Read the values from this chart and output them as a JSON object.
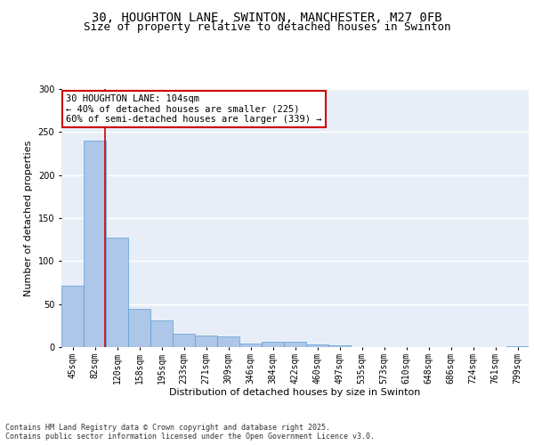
{
  "title_line1": "30, HOUGHTON LANE, SWINTON, MANCHESTER, M27 0FB",
  "title_line2": "Size of property relative to detached houses in Swinton",
  "xlabel": "Distribution of detached houses by size in Swinton",
  "ylabel": "Number of detached properties",
  "categories": [
    "45sqm",
    "82sqm",
    "120sqm",
    "158sqm",
    "195sqm",
    "233sqm",
    "271sqm",
    "309sqm",
    "346sqm",
    "384sqm",
    "422sqm",
    "460sqm",
    "497sqm",
    "535sqm",
    "573sqm",
    "610sqm",
    "648sqm",
    "686sqm",
    "724sqm",
    "761sqm",
    "799sqm"
  ],
  "values": [
    71,
    240,
    127,
    44,
    31,
    16,
    13,
    12,
    4,
    6,
    6,
    3,
    2,
    0,
    0,
    0,
    0,
    0,
    0,
    0,
    1
  ],
  "bar_color": "#aec6e8",
  "bar_edge_color": "#5a9fd4",
  "background_color": "#e8eef7",
  "grid_color": "#ffffff",
  "annotation_box_text": "30 HOUGHTON LANE: 104sqm\n← 40% of detached houses are smaller (225)\n60% of semi-detached houses are larger (339) →",
  "vline_color": "#cc0000",
  "box_edge_color": "#cc0000",
  "ylim": [
    0,
    300
  ],
  "yticks": [
    0,
    50,
    100,
    150,
    200,
    250,
    300
  ],
  "footnote": "Contains HM Land Registry data © Crown copyright and database right 2025.\nContains public sector information licensed under the Open Government Licence v3.0.",
  "title_fontsize": 10,
  "subtitle_fontsize": 9,
  "axis_label_fontsize": 8,
  "tick_fontsize": 7,
  "annotation_fontsize": 7.5,
  "ylabel_fontsize": 8
}
